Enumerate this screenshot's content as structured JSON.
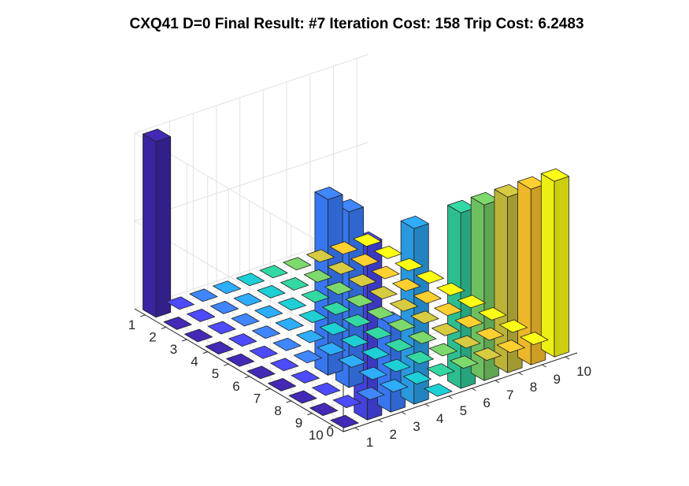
{
  "title": "CXQ41 D=0 Final Result: #7 Iteration Cost: 158 Trip Cost: 6.2483",
  "chart_data": {
    "type": "bar3",
    "title": "CXQ41 D=0 Final Result: #7 Iteration Cost: 158 Trip Cost: 6.2483",
    "row_labels": [
      "1",
      "2",
      "3",
      "4",
      "5",
      "6",
      "7",
      "8",
      "9",
      "10"
    ],
    "col_labels": [
      "1",
      "2",
      "3",
      "4",
      "5",
      "6",
      "7",
      "8",
      "9",
      "10"
    ],
    "z_ticks": [
      "0",
      "0.5",
      "1"
    ],
    "zlim": [
      0,
      1
    ],
    "grid": true,
    "colormap": "parula",
    "column_colors": [
      "#3e26a8",
      "#4745e9",
      "#3a7cfc",
      "#2ba0ea",
      "#1cc0c6",
      "#2fc898",
      "#74c964",
      "#c6bc3c",
      "#f9c12c",
      "#f9fb14"
    ],
    "matrix": [
      [
        1,
        0,
        0,
        0,
        0,
        0,
        0,
        0,
        0,
        0
      ],
      [
        0,
        0,
        0,
        0,
        0,
        0,
        0,
        0,
        0,
        0
      ],
      [
        0,
        0,
        0,
        0,
        0,
        0,
        0,
        0,
        0,
        0
      ],
      [
        0,
        0,
        0,
        0,
        0,
        0,
        0,
        0,
        0,
        0
      ],
      [
        0,
        0,
        0,
        0,
        0,
        0,
        0,
        0,
        0,
        0
      ],
      [
        0,
        0,
        0,
        0,
        0,
        0,
        0,
        0,
        0,
        0
      ],
      [
        0,
        0,
        1,
        0,
        0,
        0,
        0,
        0,
        0,
        0
      ],
      [
        0,
        0,
        1,
        0,
        0,
        0,
        0,
        0,
        0,
        0
      ],
      [
        0,
        0,
        0,
        0,
        0,
        0,
        0,
        0,
        0,
        0
      ],
      [
        0,
        1,
        0.5,
        1,
        0,
        1,
        1,
        1,
        1,
        1
      ]
    ]
  }
}
